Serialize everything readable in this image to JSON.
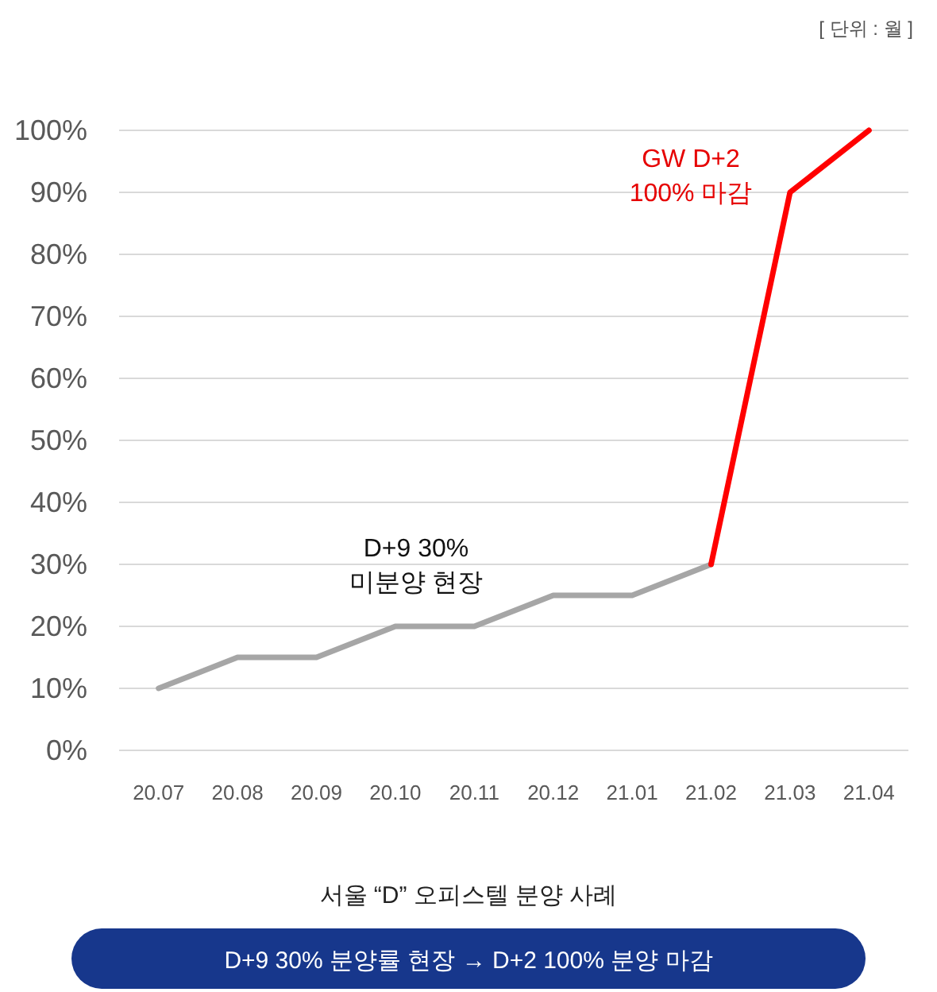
{
  "chart_data": {
    "type": "line",
    "title": "서울 “D” 오피스텔 분양 사례",
    "subtitle": "D+9 30% 분양률 현장 → D+2 100% 분양 마감",
    "categories": [
      "20.07",
      "20.08",
      "20.09",
      "20.10",
      "20.11",
      "20.12",
      "21.01",
      "21.02",
      "21.03",
      "21.04"
    ],
    "series": [
      {
        "color": "#a6a6a6",
        "values": [
          10,
          15,
          15,
          20,
          20,
          25,
          25,
          30,
          null,
          null
        ]
      },
      {
        "color": "#ff0000",
        "values": [
          null,
          null,
          null,
          null,
          null,
          null,
          null,
          30,
          90,
          100
        ]
      }
    ],
    "ylim": [
      0,
      100
    ],
    "yticks": [
      {
        "value": 0,
        "label": "0%"
      },
      {
        "value": 10,
        "label": "10%"
      },
      {
        "value": 20,
        "label": "20%"
      },
      {
        "value": 30,
        "label": "30%"
      },
      {
        "value": 40,
        "label": "40%"
      },
      {
        "value": 50,
        "label": "50%"
      },
      {
        "value": 60,
        "label": "60%"
      },
      {
        "value": 70,
        "label": "70%"
      },
      {
        "value": 80,
        "label": "80%"
      },
      {
        "value": 90,
        "label": "90%"
      },
      {
        "value": 100,
        "label": "100%"
      }
    ],
    "grid": "y",
    "marker": "none",
    "line_style": "solid",
    "annotations": [
      "[ 단위 : 월 ]",
      "D+9 30%\n미분양 현장",
      "GW D+2\n100% 마감"
    ]
  }
}
